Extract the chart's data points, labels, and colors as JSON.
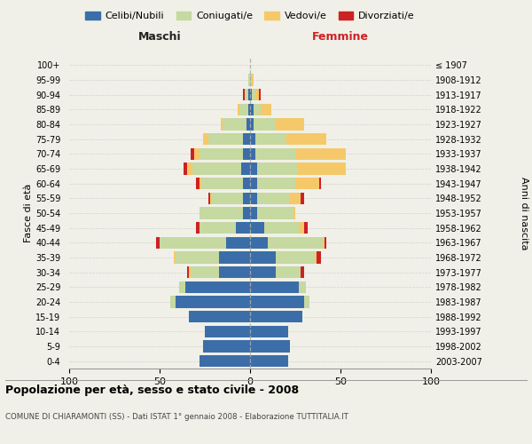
{
  "age_groups": [
    "0-4",
    "5-9",
    "10-14",
    "15-19",
    "20-24",
    "25-29",
    "30-34",
    "35-39",
    "40-44",
    "45-49",
    "50-54",
    "55-59",
    "60-64",
    "65-69",
    "70-74",
    "75-79",
    "80-84",
    "85-89",
    "90-94",
    "95-99",
    "100+"
  ],
  "birth_years": [
    "2003-2007",
    "1998-2002",
    "1993-1997",
    "1988-1992",
    "1983-1987",
    "1978-1982",
    "1973-1977",
    "1968-1972",
    "1963-1967",
    "1958-1962",
    "1953-1957",
    "1948-1952",
    "1943-1947",
    "1938-1942",
    "1933-1937",
    "1928-1932",
    "1923-1927",
    "1918-1922",
    "1913-1917",
    "1908-1912",
    "≤ 1907"
  ],
  "maschi": {
    "celibi": [
      28,
      26,
      25,
      34,
      41,
      36,
      17,
      17,
      13,
      8,
      4,
      4,
      4,
      5,
      4,
      4,
      2,
      1,
      1,
      0,
      0
    ],
    "coniugati": [
      0,
      0,
      0,
      0,
      3,
      3,
      16,
      24,
      37,
      20,
      24,
      17,
      23,
      27,
      24,
      19,
      13,
      5,
      2,
      1,
      0
    ],
    "vedovi": [
      0,
      0,
      0,
      0,
      0,
      0,
      1,
      1,
      0,
      0,
      0,
      1,
      1,
      3,
      3,
      3,
      1,
      1,
      0,
      0,
      0
    ],
    "divorziati": [
      0,
      0,
      0,
      0,
      0,
      0,
      1,
      0,
      2,
      2,
      0,
      1,
      2,
      2,
      2,
      0,
      0,
      0,
      1,
      0,
      0
    ]
  },
  "femmine": {
    "nubili": [
      21,
      22,
      21,
      29,
      30,
      27,
      14,
      14,
      10,
      8,
      4,
      4,
      4,
      4,
      3,
      3,
      2,
      2,
      1,
      0,
      0
    ],
    "coniugate": [
      0,
      0,
      0,
      0,
      3,
      4,
      14,
      22,
      30,
      19,
      20,
      18,
      21,
      22,
      22,
      17,
      12,
      4,
      2,
      1,
      0
    ],
    "vedove": [
      0,
      0,
      0,
      0,
      0,
      0,
      0,
      1,
      1,
      3,
      1,
      6,
      13,
      27,
      28,
      22,
      16,
      6,
      2,
      1,
      0
    ],
    "divorziate": [
      0,
      0,
      0,
      0,
      0,
      0,
      2,
      2,
      1,
      2,
      0,
      2,
      1,
      0,
      0,
      0,
      0,
      0,
      1,
      0,
      0
    ]
  },
  "colors": {
    "celibi_nubili": "#3b6ea8",
    "coniugati": "#c5d9a0",
    "vedovi": "#f5c96a",
    "divorziati": "#cc2222"
  },
  "xlim": 100,
  "title": "Popolazione per età, sesso e stato civile - 2008",
  "subtitle": "COMUNE DI CHIARAMONTI (SS) - Dati ISTAT 1° gennaio 2008 - Elaborazione TUTTITALIA.IT",
  "ylabel_left": "Fasce di età",
  "ylabel_right": "Anni di nascita",
  "xlabel_left": "Maschi",
  "xlabel_right": "Femmine",
  "background_color": "#f0f0e8"
}
